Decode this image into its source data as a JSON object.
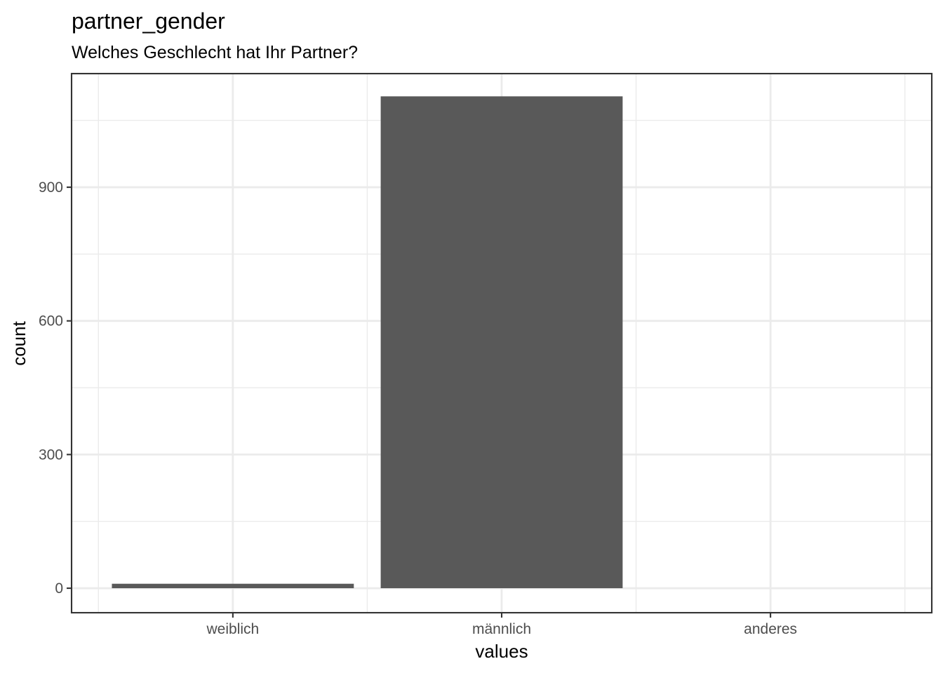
{
  "chart_data": {
    "type": "bar",
    "title": "partner_gender",
    "subtitle": "Welches Geschlecht hat Ihr Partner?",
    "xlabel": "values",
    "ylabel": "count",
    "categories": [
      "weiblich",
      "männlich",
      "anderes"
    ],
    "values": [
      10,
      1104,
      0
    ],
    "ylim": [
      -55,
      1155
    ],
    "yticks": [
      0,
      300,
      600,
      900
    ],
    "grid": true,
    "colors": {
      "bar": "#595959",
      "grid": "#ebebeb",
      "border": "#333333"
    }
  }
}
